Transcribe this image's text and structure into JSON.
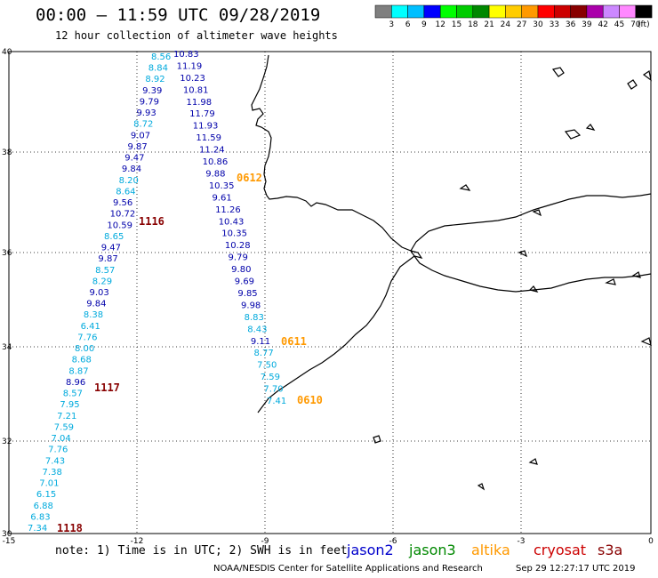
{
  "title": "00:00 – 11:59 UTC 09/28/2019",
  "subtitle": "12 hour collection of altimeter wave heights",
  "footnote": "note: 1) Time is in UTC; 2) SWH is in feet",
  "credit": "NOAA/NESDIS Center for Satellite Applications and Research",
  "timestamp": "Sep 29 12:27:17 UTC 2019",
  "colorbar": {
    "unit": "(ft)",
    "labels": [
      "3",
      "6",
      "9",
      "12",
      "15",
      "18",
      "21",
      "24",
      "27",
      "30",
      "33",
      "36",
      "39",
      "42",
      "45",
      "70"
    ],
    "colors": [
      "#7f7f7f",
      "#00ffff",
      "#00bfff",
      "#0000ff",
      "#00ff00",
      "#00cc00",
      "#008800",
      "#ffff00",
      "#ffcc00",
      "#ff9900",
      "#ff0000",
      "#cc0000",
      "#880000",
      "#aa00aa",
      "#cc88ff",
      "#ff88ff",
      "#000000"
    ]
  },
  "satellites": [
    {
      "name": "jason2",
      "color": "#0000cc"
    },
    {
      "name": "jason3",
      "color": "#008800"
    },
    {
      "name": "altika",
      "color": "#ff9900"
    },
    {
      "name": "cryosat",
      "color": "#cc0000"
    },
    {
      "name": "s3a",
      "color": "#880000"
    }
  ],
  "axes": {
    "lon_ticks": [
      "-15",
      "-12",
      "-9",
      "-6",
      "-3",
      "0"
    ],
    "lat_ticks": [
      "40",
      "38",
      "36",
      "34",
      "32",
      "30"
    ]
  },
  "pass_labels": [
    {
      "text": "1116",
      "color": "#880000"
    },
    {
      "text": "0612",
      "color": "#ff9900"
    },
    {
      "text": "0611",
      "color": "#ff9900"
    },
    {
      "text": "1117",
      "color": "#880000"
    },
    {
      "text": "0610",
      "color": "#ff9900"
    },
    {
      "text": "1118",
      "color": "#880000"
    }
  ],
  "tracks": [
    {
      "values": [
        {
          "v": "8.56",
          "c": "#00aadd"
        },
        {
          "v": "8.84",
          "c": "#00aadd"
        },
        {
          "v": "8.92",
          "c": "#00aadd"
        },
        {
          "v": "9.39",
          "c": "#0000aa"
        },
        {
          "v": "9.79",
          "c": "#0000aa"
        },
        {
          "v": "9.93",
          "c": "#0000aa"
        },
        {
          "v": "8.72",
          "c": "#00aadd"
        },
        {
          "v": "9.07",
          "c": "#0000aa"
        },
        {
          "v": "9.87",
          "c": "#0000aa"
        },
        {
          "v": "9.47",
          "c": "#0000aa"
        },
        {
          "v": "9.84",
          "c": "#0000aa"
        },
        {
          "v": "8.20",
          "c": "#00aadd"
        },
        {
          "v": "8.64",
          "c": "#00aadd"
        },
        {
          "v": "9.56",
          "c": "#0000aa"
        },
        {
          "v": "10.72",
          "c": "#0000aa"
        },
        {
          "v": "10.59",
          "c": "#0000aa"
        },
        {
          "v": "8.65",
          "c": "#00aadd"
        },
        {
          "v": "9.47",
          "c": "#0000aa"
        },
        {
          "v": "9.87",
          "c": "#0000aa"
        },
        {
          "v": "8.57",
          "c": "#00aadd"
        },
        {
          "v": "8.29",
          "c": "#00aadd"
        },
        {
          "v": "9.03",
          "c": "#0000aa"
        },
        {
          "v": "9.84",
          "c": "#0000aa"
        },
        {
          "v": "8.38",
          "c": "#00aadd"
        },
        {
          "v": "6.41",
          "c": "#00aadd"
        },
        {
          "v": "7.76",
          "c": "#00aadd"
        },
        {
          "v": "8.00",
          "c": "#00aadd"
        },
        {
          "v": "8.68",
          "c": "#00aadd"
        },
        {
          "v": "8.87",
          "c": "#00aadd"
        },
        {
          "v": "8.96",
          "c": "#0000aa"
        },
        {
          "v": "8.57",
          "c": "#00aadd"
        },
        {
          "v": "7.95",
          "c": "#00aadd"
        },
        {
          "v": "7.21",
          "c": "#00aadd"
        },
        {
          "v": "7.59",
          "c": "#00aadd"
        },
        {
          "v": "7.04",
          "c": "#00aadd"
        },
        {
          "v": "7.76",
          "c": "#00aadd"
        },
        {
          "v": "7.43",
          "c": "#00aadd"
        },
        {
          "v": "7.38",
          "c": "#00aadd"
        },
        {
          "v": "7.01",
          "c": "#00aadd"
        },
        {
          "v": "6.15",
          "c": "#00aadd"
        },
        {
          "v": "6.88",
          "c": "#00aadd"
        },
        {
          "v": "6.83",
          "c": "#00aadd"
        },
        {
          "v": "7.34",
          "c": "#00aadd"
        }
      ]
    },
    {
      "values": [
        {
          "v": "10.83",
          "c": "#0000aa"
        },
        {
          "v": "11.19",
          "c": "#0000aa"
        },
        {
          "v": "10.23",
          "c": "#0000aa"
        },
        {
          "v": "10.81",
          "c": "#0000aa"
        },
        {
          "v": "11.98",
          "c": "#0000aa"
        },
        {
          "v": "11.79",
          "c": "#0000aa"
        },
        {
          "v": "11.93",
          "c": "#0000aa"
        },
        {
          "v": "11.59",
          "c": "#0000aa"
        },
        {
          "v": "11.24",
          "c": "#0000aa"
        },
        {
          "v": "10.86",
          "c": "#0000aa"
        },
        {
          "v": "9.88",
          "c": "#0000aa"
        },
        {
          "v": "10.35",
          "c": "#0000aa"
        },
        {
          "v": "9.61",
          "c": "#0000aa"
        },
        {
          "v": "11.26",
          "c": "#0000aa"
        },
        {
          "v": "10.43",
          "c": "#0000aa"
        },
        {
          "v": "10.35",
          "c": "#0000aa"
        },
        {
          "v": "10.28",
          "c": "#0000aa"
        },
        {
          "v": "9.79",
          "c": "#0000aa"
        },
        {
          "v": "9.80",
          "c": "#0000aa"
        },
        {
          "v": "9.69",
          "c": "#0000aa"
        },
        {
          "v": "9.85",
          "c": "#0000aa"
        },
        {
          "v": "9.98",
          "c": "#0000aa"
        },
        {
          "v": "8.83",
          "c": "#00aadd"
        },
        {
          "v": "8.43",
          "c": "#00aadd"
        },
        {
          "v": "9.11",
          "c": "#0000aa"
        },
        {
          "v": "8.77",
          "c": "#00aadd"
        },
        {
          "v": "7.50",
          "c": "#00aadd"
        },
        {
          "v": "7.59",
          "c": "#00aadd"
        },
        {
          "v": "7.70",
          "c": "#00aadd"
        },
        {
          "v": "7.41",
          "c": "#00aadd"
        }
      ]
    }
  ]
}
